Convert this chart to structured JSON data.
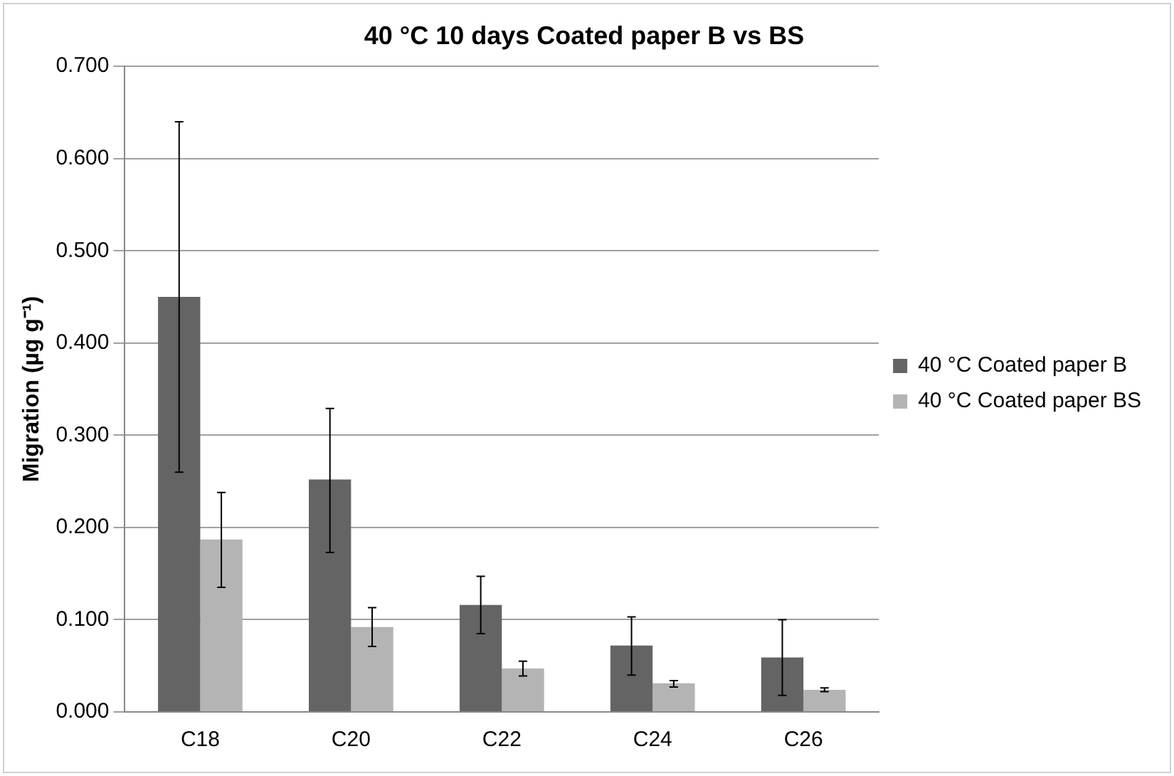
{
  "chart_data": {
    "type": "bar",
    "title": "40 °C 10 days Coated paper B vs BS",
    "ylabel": "Migration (µg g⁻¹)",
    "categories": [
      "C18",
      "C20",
      "C22",
      "C24",
      "C26"
    ],
    "series": [
      {
        "name": "40 °C Coated paper B",
        "color": "#646464",
        "values": [
          0.45,
          0.252,
          0.116,
          0.072,
          0.059
        ],
        "errors": [
          [
            0.26,
            0.64
          ],
          [
            0.173,
            0.329
          ],
          [
            0.085,
            0.147
          ],
          [
            0.04,
            0.103
          ],
          [
            0.018,
            0.1
          ]
        ]
      },
      {
        "name": "40 °C Coated paper BS",
        "color": "#b4b4b4",
        "values": [
          0.187,
          0.092,
          0.047,
          0.031,
          0.024
        ],
        "errors": [
          [
            0.135,
            0.238
          ],
          [
            0.071,
            0.113
          ],
          [
            0.039,
            0.055
          ],
          [
            0.027,
            0.034
          ],
          [
            0.022,
            0.026
          ]
        ]
      }
    ],
    "ylim": [
      0,
      0.7
    ],
    "yticks": [
      {
        "value": 0,
        "label": "0.000"
      },
      {
        "value": 0.1,
        "label": "0.100"
      },
      {
        "value": 0.2,
        "label": "0.200"
      },
      {
        "value": 0.3,
        "label": "0.300"
      },
      {
        "value": 0.4,
        "label": "0.400"
      },
      {
        "value": 0.5,
        "label": "0.500"
      },
      {
        "value": 0.6,
        "label": "0.600"
      },
      {
        "value": 0.7,
        "label": "0.700"
      }
    ],
    "grid": "y",
    "legend": "right"
  }
}
